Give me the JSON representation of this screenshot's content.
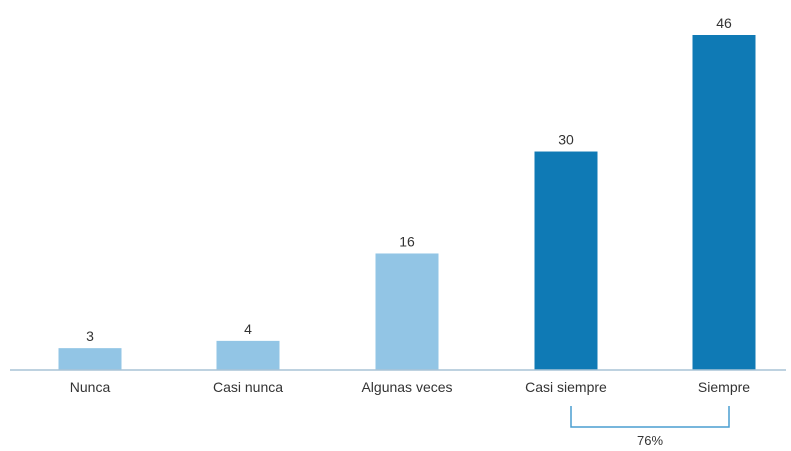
{
  "chart_data": {
    "type": "bar",
    "title": "",
    "xlabel": "",
    "ylabel": "",
    "categories": [
      "Nunca",
      "Casi nunca",
      "Algunas veces",
      "Casi siempre",
      "Siempre"
    ],
    "values": [
      3,
      4,
      16,
      30,
      46
    ],
    "value_labels": [
      "3",
      "4",
      "16",
      "30",
      "46"
    ],
    "ylim": [
      0,
      46
    ],
    "grid": false,
    "legend": "none",
    "bar_colors": [
      "#92c5e5",
      "#92c5e5",
      "#92c5e5",
      "#0f7ab5",
      "#0f7ab5"
    ],
    "axis_color": "#a9c4d6",
    "annotation": {
      "label": "76%",
      "spans": [
        "Casi siempre",
        "Siempre"
      ],
      "color": "#4a9ed0"
    }
  }
}
